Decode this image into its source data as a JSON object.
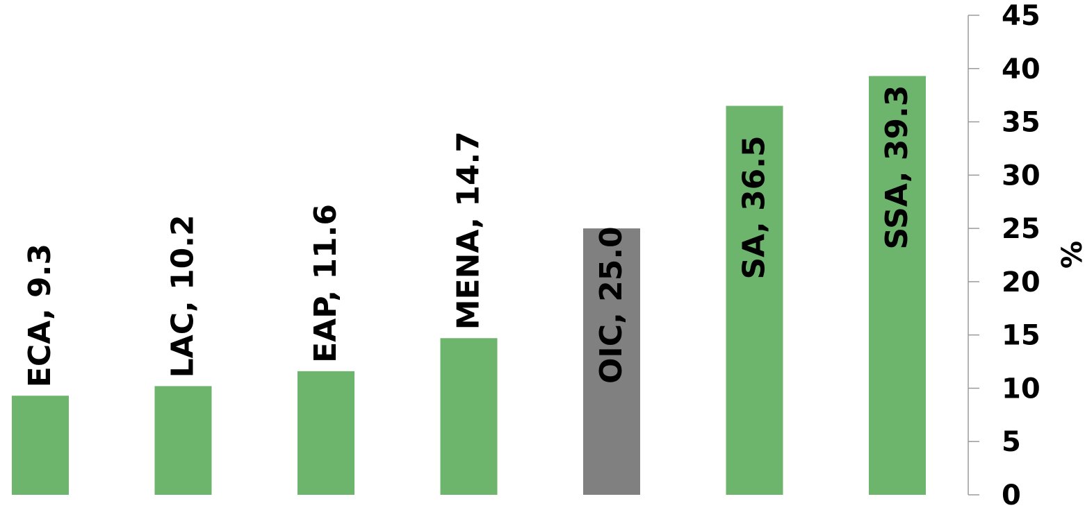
{
  "chart_data": {
    "type": "bar",
    "categories": [
      "ECA",
      "LAC",
      "EAP",
      "MENA",
      "OIC",
      "SA",
      "SSA"
    ],
    "values": [
      9.3,
      10.2,
      11.6,
      14.7,
      25.0,
      36.5,
      39.3
    ],
    "data_labels": [
      "ECA, 9.3",
      "LAC, 10.2",
      "EAP, 11.6",
      "MENA, 14.7",
      "OIC, 25.0",
      "SA, 36.5",
      "SSA, 39.3"
    ],
    "colors": [
      "#6db56d",
      "#6db56d",
      "#6db56d",
      "#6db56d",
      "#808080",
      "#6db56d",
      "#6db56d"
    ],
    "ylabel": "%",
    "ylim": [
      0,
      45
    ],
    "yticks": [
      "0",
      "5",
      "10",
      "15",
      "20",
      "25",
      "30",
      "35",
      "40",
      "45"
    ],
    "y_axis_side": "right",
    "grid": false,
    "legend": "none"
  }
}
